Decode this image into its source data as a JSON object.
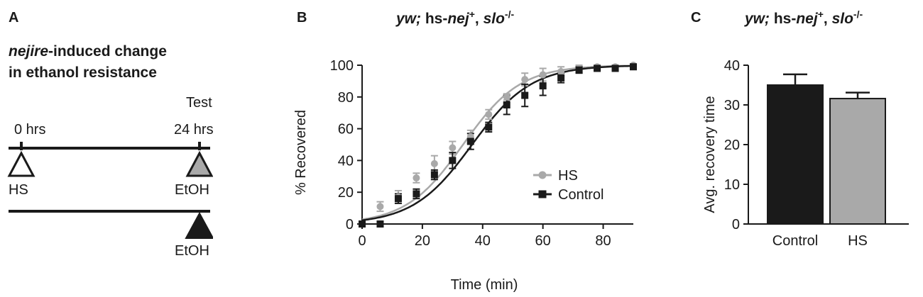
{
  "panels": {
    "a": {
      "letter": "A",
      "title_italic": "nejire",
      "title_rest_1": "-induced change",
      "title_line_2": "in ethanol resistance",
      "test_label": "Test",
      "time_start": "0 hrs",
      "time_end": "24 hrs",
      "row1_start_label": "HS",
      "row1_end_label": "EtOH",
      "row2_end_label": "EtOH",
      "colors": {
        "line": "#1a1a1a",
        "grey_triangle": "#a9a9a9",
        "black_triangle": "#1a1a1a"
      }
    },
    "b": {
      "letter": "B"
    },
    "c": {
      "letter": "C"
    }
  },
  "genotype_title": {
    "part1": "yw;",
    "part2": " hs-",
    "part3": "nej",
    "sup1": "+",
    "part4": ", ",
    "part5": "slo",
    "sup2": "-/-"
  },
  "chart_data": [
    {
      "type": "line",
      "title": "yw; hs-nej+, slo-/-",
      "xlabel": "Time (min)",
      "ylabel": "% Recovered",
      "xlim": [
        0,
        90
      ],
      "ylim": [
        0,
        100
      ],
      "xticks": [
        "0",
        "20",
        "40",
        "60",
        "80"
      ],
      "xtick_values": [
        0,
        20,
        40,
        60,
        80
      ],
      "yticks": [
        "0",
        "20",
        "40",
        "60",
        "80",
        "100"
      ],
      "ytick_values": [
        0,
        20,
        40,
        60,
        80,
        100
      ],
      "grid": false,
      "legend_position": "bottom-right",
      "series": [
        {
          "name": "HS",
          "color": "#a9a9a9",
          "marker": "circle",
          "x": [
            0,
            6,
            12,
            18,
            24,
            30,
            36,
            42,
            48,
            54,
            60,
            66,
            72,
            78,
            84,
            90
          ],
          "y": [
            0,
            11,
            17,
            29,
            38,
            48,
            55,
            69,
            80,
            91,
            94,
            96,
            98,
            99,
            99,
            100
          ],
          "err": [
            0,
            3,
            4,
            3,
            5,
            4,
            4,
            3,
            2,
            4,
            4,
            3,
            2,
            1,
            1,
            0
          ]
        },
        {
          "name": "Control",
          "color": "#1a1a1a",
          "marker": "square",
          "x": [
            0,
            6,
            12,
            18,
            24,
            30,
            36,
            42,
            48,
            54,
            60,
            66,
            72,
            78,
            84,
            90
          ],
          "y": [
            0,
            0,
            16,
            19,
            31,
            40,
            52,
            61,
            75,
            81,
            87,
            92,
            97,
            98,
            98,
            99
          ],
          "err": [
            0,
            0,
            3,
            3,
            3,
            5,
            5,
            3,
            6,
            7,
            6,
            3,
            2,
            1,
            1,
            1
          ]
        }
      ]
    },
    {
      "type": "bar",
      "title": "yw; hs-nej+, slo-/-",
      "xlabel": "",
      "ylabel": "Avg. recovery time",
      "categories": [
        "Control",
        "HS"
      ],
      "values": [
        35,
        31.6
      ],
      "errors": [
        2.7,
        1.5
      ],
      "colors": [
        "#1a1a1a",
        "#a9a9a9"
      ],
      "ylim": [
        0,
        40
      ],
      "yticks": [
        "0",
        "10",
        "20",
        "30",
        "40"
      ],
      "ytick_values": [
        0,
        10,
        20,
        30,
        40
      ],
      "grid": false
    }
  ]
}
